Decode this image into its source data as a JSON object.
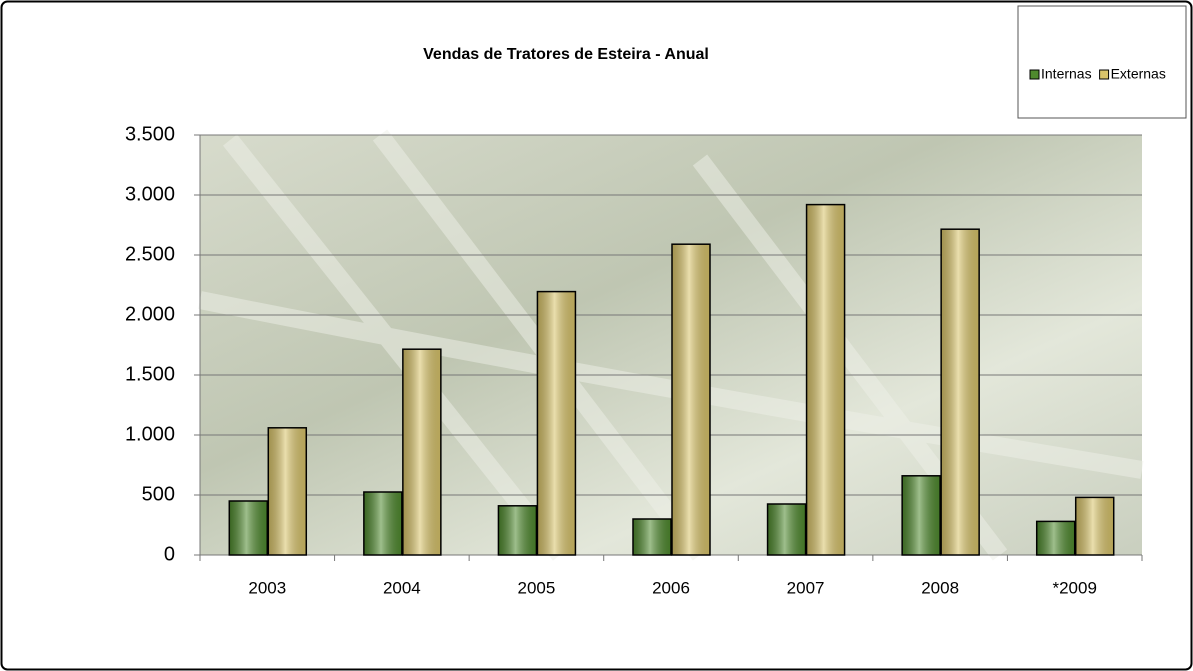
{
  "chart_data": {
    "type": "bar",
    "title": "Vendas de Tratores de Esteira - Anual",
    "categories": [
      "2003",
      "2004",
      "2005",
      "2006",
      "2007",
      "2008",
      "*2009"
    ],
    "series": [
      {
        "name": "Internas",
        "color": "#4f8a2e",
        "values": [
          450,
          525,
          410,
          300,
          425,
          660,
          280
        ]
      },
      {
        "name": "Externas",
        "color": "#d9c46a",
        "values": [
          1060,
          1715,
          2195,
          2590,
          2920,
          2715,
          480
        ]
      }
    ],
    "ylim": [
      0,
      3500
    ],
    "yticks": [
      0,
      500,
      {
        "value": 1000,
        "label": "1.000"
      },
      {
        "value": 1500,
        "label": "1.500"
      },
      {
        "value": 2000,
        "label": "2.000"
      },
      {
        "value": 2500,
        "label": "2.500"
      },
      {
        "value": 3000,
        "label": "3.000"
      },
      {
        "value": 3500,
        "label": "3.500"
      }
    ],
    "grid": true,
    "legend": "top-right"
  }
}
